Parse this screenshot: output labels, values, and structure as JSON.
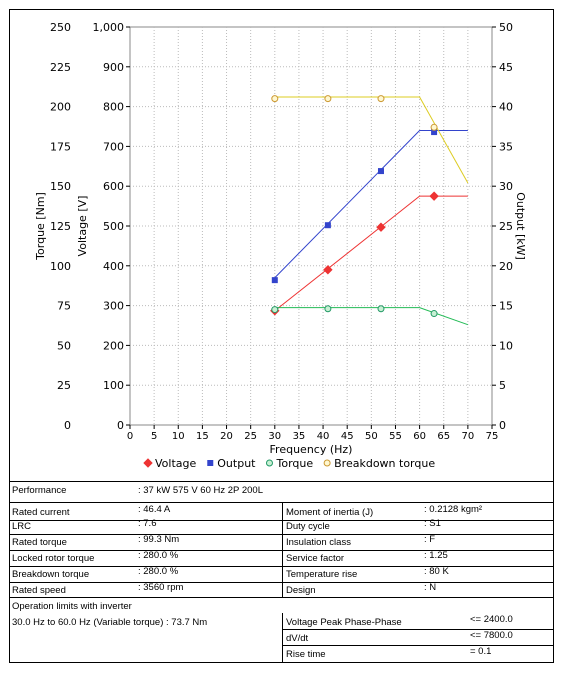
{
  "chart_data": {
    "type": "line",
    "xlabel": "Frequency (Hz)",
    "ylabel_torque": "Torque [Nm]",
    "ylabel_voltage": "Voltage [V]",
    "ylabel_output": "Output [kW]",
    "xlim": [
      0,
      75
    ],
    "xticks": [
      "0",
      "5",
      "10",
      "15",
      "20",
      "25",
      "30",
      "35",
      "40",
      "45",
      "50",
      "55",
      "60",
      "65",
      "70",
      "75"
    ],
    "torque_ticks": [
      "0",
      "25",
      "50",
      "75",
      "100",
      "125",
      "150",
      "175",
      "200",
      "225",
      "250"
    ],
    "voltage_ticks": [
      "0",
      "100",
      "200",
      "300",
      "400",
      "500",
      "600",
      "700",
      "800",
      "900",
      "1,000"
    ],
    "output_ticks": [
      "0",
      "5",
      "10",
      "15",
      "20",
      "25",
      "30",
      "35",
      "40",
      "45",
      "50"
    ],
    "grid": true,
    "legend_position": "bottom",
    "series": [
      {
        "name": "Voltage",
        "axis": "voltage",
        "color": "#ee3333",
        "marker": "diamond",
        "line": {
          "x": [
            30,
            60,
            70
          ],
          "y": [
            287,
            575,
            575
          ]
        },
        "markers": {
          "x": [
            30,
            41,
            52,
            63
          ],
          "y": [
            287,
            390,
            497,
            575
          ]
        }
      },
      {
        "name": "Output",
        "axis": "output",
        "color": "#3344cc",
        "marker": "square",
        "line": {
          "x": [
            30,
            60,
            70
          ],
          "y": [
            18.5,
            37,
            37
          ]
        },
        "markers": {
          "x": [
            30,
            41,
            52,
            63
          ],
          "y": [
            18.2,
            25.1,
            31.9,
            36.8
          ]
        }
      },
      {
        "name": "Torque",
        "axis": "torque",
        "color": "#22bb55",
        "marker": "circle",
        "line": {
          "x": [
            30,
            60,
            70
          ],
          "y": [
            73.7,
            73.7,
            63
          ]
        },
        "markers": {
          "x": [
            30,
            41,
            52,
            63
          ],
          "y": [
            72.5,
            73,
            73,
            70
          ]
        }
      },
      {
        "name": "Breakdown torque",
        "axis": "torque",
        "color": "#ddcc22",
        "marker": "circle",
        "line": {
          "x": [
            30,
            60,
            70
          ],
          "y": [
            206,
            206,
            152
          ]
        },
        "markers": {
          "x": [
            30,
            41,
            52,
            63
          ],
          "y": [
            205,
            205,
            205,
            187
          ]
        }
      }
    ]
  },
  "table": {
    "performance_label": "Performance",
    "performance_value": ": 37 kW 575 V 60 Hz 2P 200L",
    "left_rows": [
      {
        "label": "Rated current",
        "value": ": 46.4 A"
      },
      {
        "label": "LRC",
        "value": ": 7.6"
      },
      {
        "label": "Rated torque",
        "value": ": 99.3 Nm"
      },
      {
        "label": "Locked rotor torque",
        "value": ": 280.0 %"
      },
      {
        "label": "Breakdown torque",
        "value": ": 280.0 %"
      },
      {
        "label": "Rated speed",
        "value": ": 3560 rpm"
      }
    ],
    "right_rows": [
      {
        "label": "Moment of inertia (J)",
        "value": ": 0.2128 kgm²"
      },
      {
        "label": "Duty cycle",
        "value": ": S1"
      },
      {
        "label": "Insulation class",
        "value": ": F"
      },
      {
        "label": "Service factor",
        "value": ": 1.25"
      },
      {
        "label": "Temperature rise",
        "value": ": 80 K"
      },
      {
        "label": "Design",
        "value": ": N"
      }
    ],
    "inverter_title": "Operation limits with inverter",
    "inverter_text": "30.0 Hz to 60.0 Hz (Variable torque) : 73.7 Nm",
    "inverter_rows": [
      {
        "label": "Voltage Peak Phase-Phase",
        "value": "<= 2400.0"
      },
      {
        "label": "dV/dt",
        "value": "<= 7800.0"
      },
      {
        "label": "Rise time",
        "value": "= 0.1"
      }
    ]
  }
}
